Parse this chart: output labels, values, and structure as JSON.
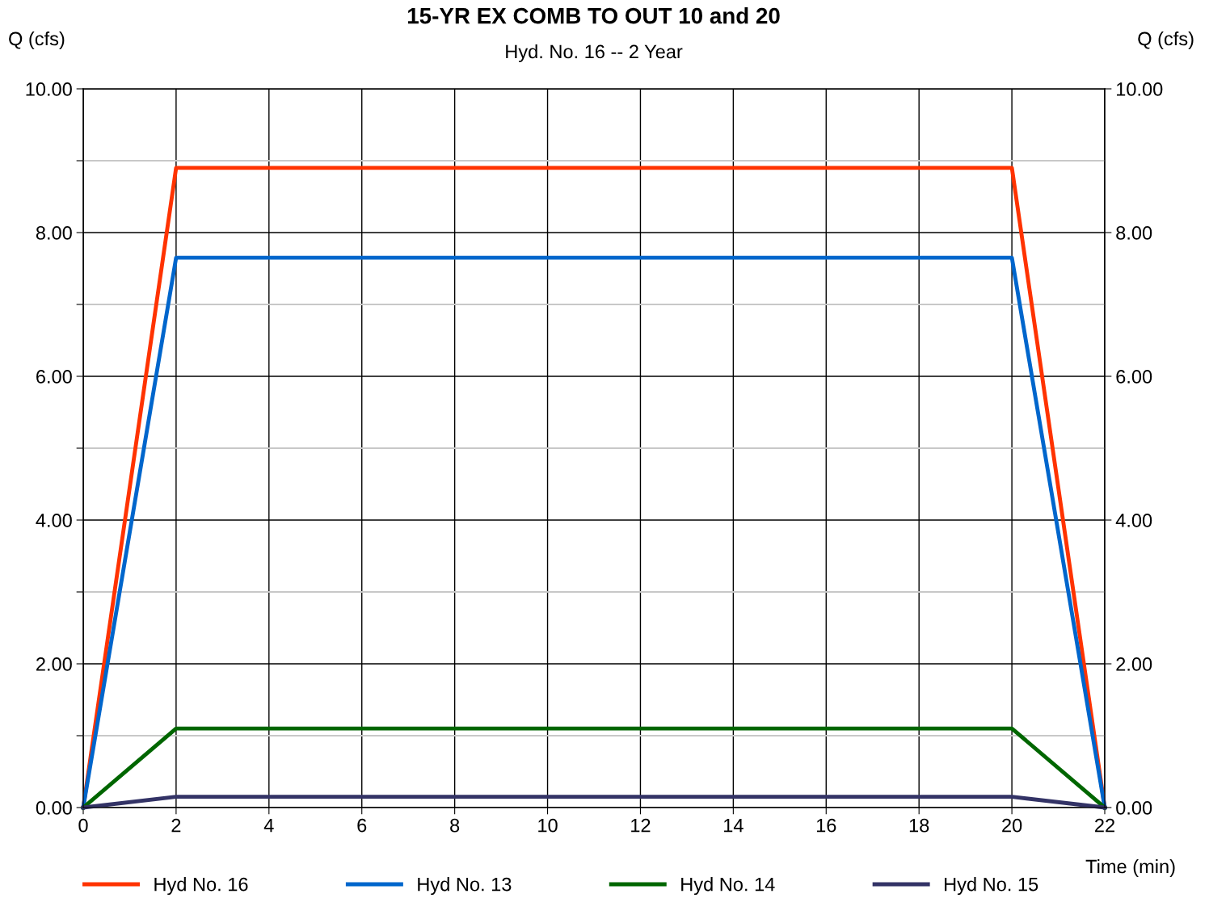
{
  "chart_data": {
    "type": "line",
    "title": "15-YR EX COMB TO OUT 10 and 20",
    "subtitle": "Hyd. No. 16 -- 2 Year",
    "xlabel": "Time (min)",
    "ylabel": "Q (cfs)",
    "y2label": "Q (cfs)",
    "x": [
      0,
      2,
      20,
      22
    ],
    "series": [
      {
        "name": "Hyd No. 16",
        "color": "#ff3300",
        "values": [
          0,
          8.9,
          8.9,
          0
        ]
      },
      {
        "name": "Hyd No. 13",
        "color": "#0066cc",
        "values": [
          0,
          7.65,
          7.65,
          0
        ]
      },
      {
        "name": "Hyd No. 14",
        "color": "#006600",
        "values": [
          0,
          1.1,
          1.1,
          0
        ]
      },
      {
        "name": "Hyd No. 15",
        "color": "#333366",
        "values": [
          0,
          0.15,
          0.15,
          0
        ]
      }
    ],
    "xlim": [
      0,
      22
    ],
    "xticks": [
      0,
      2,
      4,
      6,
      8,
      10,
      12,
      14,
      16,
      18,
      20,
      22
    ],
    "ylim": [
      0,
      10
    ],
    "yticks": [
      {
        "value": 0,
        "label": "0.00"
      },
      {
        "value": 1,
        "label": null
      },
      {
        "value": 2,
        "label": "2.00"
      },
      {
        "value": 3,
        "label": null
      },
      {
        "value": 4,
        "label": "4.00"
      },
      {
        "value": 5,
        "label": null
      },
      {
        "value": 6,
        "label": "6.00"
      },
      {
        "value": 7,
        "label": null
      },
      {
        "value": 8,
        "label": "8.00"
      },
      {
        "value": 9,
        "label": null
      },
      {
        "value": 10,
        "label": "10.00"
      }
    ],
    "y2lim": [
      0,
      10
    ],
    "y2ticks": [
      {
        "value": 0,
        "label": "0.00"
      },
      {
        "value": 2,
        "label": "2.00"
      },
      {
        "value": 4,
        "label": "4.00"
      },
      {
        "value": 6,
        "label": "6.00"
      },
      {
        "value": 8,
        "label": "8.00"
      },
      {
        "value": 10,
        "label": "10.00"
      }
    ],
    "grid": true,
    "legend": "bottom",
    "marker": "none",
    "line_style": "solid"
  }
}
